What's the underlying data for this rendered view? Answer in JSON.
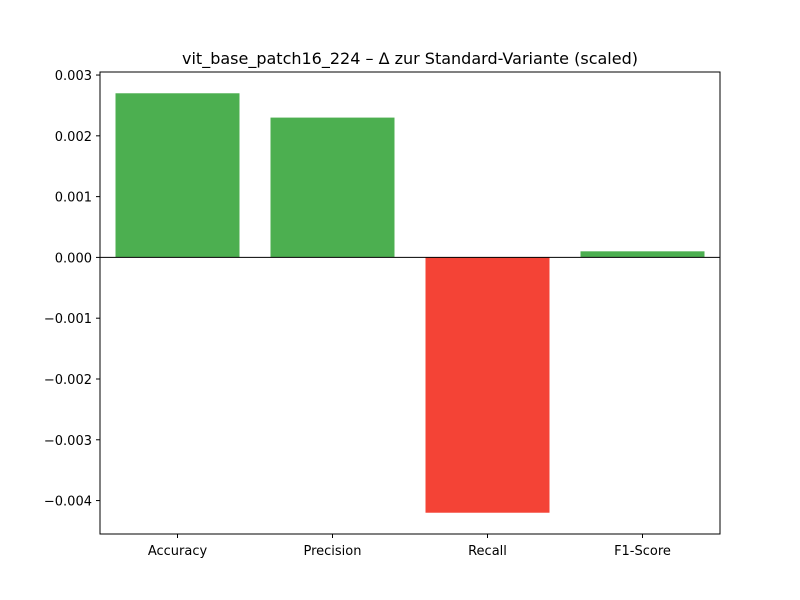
{
  "chart_data": {
    "type": "bar",
    "title": "vit_base_patch16_224 – Δ zur Standard-Variante (scaled)",
    "xlabel": "",
    "ylabel": "",
    "categories": [
      "Accuracy",
      "Precision",
      "Recall",
      "F1-Score"
    ],
    "values": [
      0.0027,
      0.0023,
      -0.0042,
      0.0001
    ],
    "ylim": [
      -0.00455,
      0.00305
    ],
    "yticks": [
      0.003,
      0.002,
      0.001,
      0.0,
      -0.001,
      -0.002,
      -0.003,
      -0.004
    ],
    "ytick_labels": [
      "0.003",
      "0.002",
      "0.001",
      "0.000",
      "−0.001",
      "−0.002",
      "−0.003",
      "−0.004"
    ],
    "grid": false,
    "zero_line": true,
    "colors": {
      "positive": "#4caf50",
      "negative": "#f44336"
    }
  }
}
